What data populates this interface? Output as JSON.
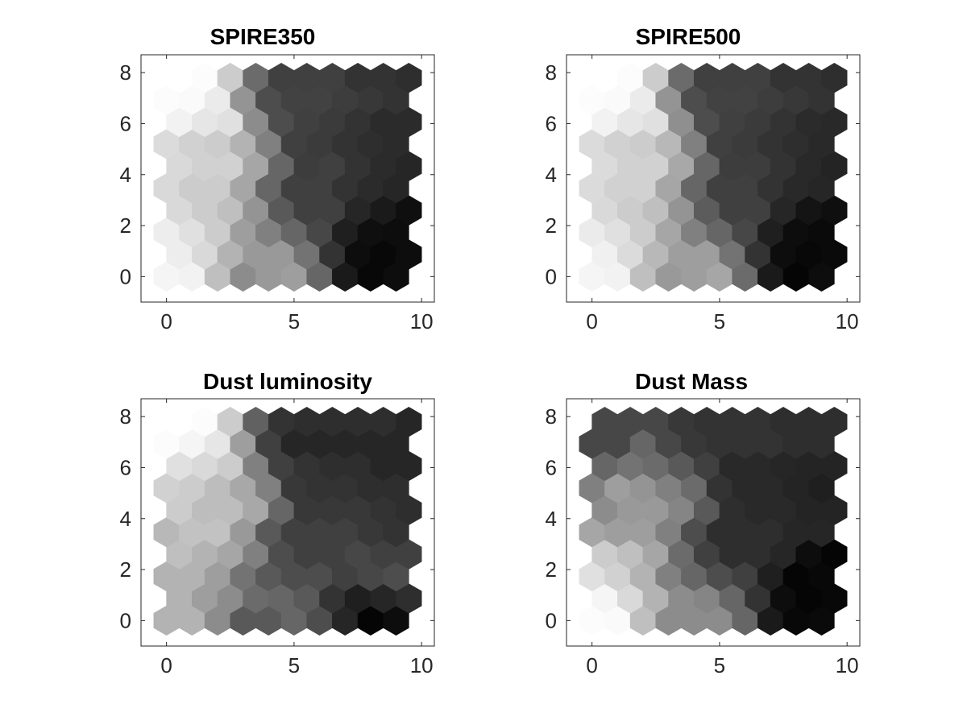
{
  "chart_data": [
    {
      "type": "heatmap",
      "title": "SPIRE350",
      "xticks": [
        "0",
        "5",
        "10"
      ],
      "yticks": [
        "0",
        "2",
        "4",
        "6",
        "8"
      ],
      "xlim": [
        -1,
        10.5
      ],
      "ylim": [
        -1,
        8.7
      ],
      "colormap": "gray (0 = black, 1 = white)",
      "grid_shape": "hexagonal 10 x 10, odd rows shifted +0.5",
      "rows": [
        [
          0.96,
          0.95,
          0.75,
          0.55,
          0.6,
          0.62,
          0.4,
          0.1,
          0.03,
          0.05
        ],
        [
          0.93,
          0.85,
          0.7,
          0.6,
          0.6,
          0.45,
          0.2,
          0.05,
          0.03,
          0.05
        ],
        [
          0.93,
          0.88,
          0.8,
          0.62,
          0.5,
          0.4,
          0.28,
          0.12,
          0.06,
          0.05
        ],
        [
          0.85,
          0.8,
          0.75,
          0.58,
          0.35,
          0.25,
          0.25,
          0.15,
          0.1,
          0.06
        ],
        [
          0.85,
          0.8,
          0.8,
          0.65,
          0.4,
          0.25,
          0.25,
          0.2,
          0.17,
          0.15
        ],
        [
          0.85,
          0.82,
          0.82,
          0.65,
          0.4,
          0.24,
          0.25,
          0.2,
          0.17,
          0.15
        ],
        [
          0.86,
          0.82,
          0.8,
          0.7,
          0.5,
          0.25,
          0.23,
          0.2,
          0.18,
          0.17
        ],
        [
          0.95,
          0.9,
          0.88,
          0.55,
          0.3,
          0.25,
          0.23,
          0.2,
          0.17,
          0.17
        ],
        [
          0.99,
          0.98,
          0.92,
          0.58,
          0.3,
          0.26,
          0.26,
          0.24,
          0.22,
          0.2
        ],
        [
          1.0,
          0.99,
          0.8,
          0.42,
          0.25,
          0.25,
          0.25,
          0.2,
          0.2,
          0.18
        ]
      ]
    },
    {
      "type": "heatmap",
      "title": "SPIRE500",
      "xticks": [
        "0",
        "5",
        "10"
      ],
      "yticks": [
        "0",
        "2",
        "4",
        "6",
        "8"
      ],
      "xlim": [
        -1,
        10.5
      ],
      "ylim": [
        -1,
        8.7
      ],
      "colormap": "gray (0 = black, 1 = white)",
      "grid_shape": "hexagonal 10 x 10, odd rows shifted +0.5",
      "rows": [
        [
          0.96,
          0.95,
          0.75,
          0.6,
          0.62,
          0.65,
          0.42,
          0.1,
          0.02,
          0.05
        ],
        [
          0.94,
          0.86,
          0.72,
          0.62,
          0.62,
          0.45,
          0.2,
          0.05,
          0.03,
          0.04
        ],
        [
          0.92,
          0.88,
          0.8,
          0.65,
          0.5,
          0.4,
          0.28,
          0.12,
          0.05,
          0.04
        ],
        [
          0.85,
          0.8,
          0.75,
          0.58,
          0.36,
          0.25,
          0.25,
          0.15,
          0.08,
          0.06
        ],
        [
          0.86,
          0.82,
          0.82,
          0.65,
          0.4,
          0.25,
          0.25,
          0.2,
          0.16,
          0.15
        ],
        [
          0.86,
          0.82,
          0.82,
          0.66,
          0.4,
          0.24,
          0.24,
          0.2,
          0.16,
          0.14
        ],
        [
          0.86,
          0.82,
          0.8,
          0.72,
          0.5,
          0.25,
          0.23,
          0.2,
          0.18,
          0.16
        ],
        [
          0.95,
          0.9,
          0.88,
          0.56,
          0.3,
          0.25,
          0.23,
          0.2,
          0.17,
          0.16
        ],
        [
          0.99,
          0.98,
          0.92,
          0.58,
          0.3,
          0.26,
          0.26,
          0.24,
          0.22,
          0.2
        ],
        [
          1.0,
          0.99,
          0.8,
          0.42,
          0.25,
          0.25,
          0.25,
          0.2,
          0.2,
          0.18
        ]
      ]
    },
    {
      "type": "heatmap",
      "title": "Dust luminosity",
      "xticks": [
        "0",
        "5",
        "10"
      ],
      "yticks": [
        "0",
        "2",
        "4",
        "6",
        "8"
      ],
      "xlim": [
        -1,
        10.5
      ],
      "ylim": [
        -1,
        8.7
      ],
      "colormap": "gray (0 = black, 1 = white)",
      "grid_shape": "hexagonal 10 x 10, odd rows shifted +0.5",
      "rows": [
        [
          0.7,
          0.7,
          0.55,
          0.35,
          0.35,
          0.4,
          0.3,
          0.15,
          0.02,
          0.05
        ],
        [
          0.7,
          0.62,
          0.55,
          0.42,
          0.4,
          0.35,
          0.2,
          0.12,
          0.15,
          0.18
        ],
        [
          0.7,
          0.7,
          0.62,
          0.45,
          0.35,
          0.3,
          0.3,
          0.25,
          0.28,
          0.3
        ],
        [
          0.75,
          0.7,
          0.65,
          0.5,
          0.3,
          0.25,
          0.25,
          0.28,
          0.25,
          0.25
        ],
        [
          0.72,
          0.76,
          0.76,
          0.6,
          0.35,
          0.25,
          0.25,
          0.25,
          0.22,
          0.2
        ],
        [
          0.8,
          0.74,
          0.74,
          0.66,
          0.4,
          0.22,
          0.22,
          0.22,
          0.2,
          0.18
        ],
        [
          0.82,
          0.8,
          0.74,
          0.66,
          0.5,
          0.22,
          0.2,
          0.2,
          0.18,
          0.18
        ],
        [
          0.88,
          0.85,
          0.8,
          0.5,
          0.25,
          0.2,
          0.18,
          0.18,
          0.15,
          0.15
        ],
        [
          0.99,
          0.96,
          0.9,
          0.62,
          0.25,
          0.15,
          0.15,
          0.15,
          0.15,
          0.15
        ],
        [
          1.0,
          0.99,
          0.8,
          0.38,
          0.2,
          0.18,
          0.18,
          0.18,
          0.18,
          0.15
        ]
      ]
    },
    {
      "type": "heatmap",
      "title": "Dust Mass",
      "xticks": [
        "0",
        "5",
        "10"
      ],
      "yticks": [
        "0",
        "2",
        "4",
        "6",
        "8"
      ],
      "xlim": [
        -1,
        10.5
      ],
      "ylim": [
        -1,
        8.7
      ],
      "colormap": "gray (0 = black, 1 = white)",
      "grid_shape": "hexagonal 10 x 10, odd rows shifted +0.5",
      "rows": [
        [
          0.99,
          0.98,
          0.75,
          0.55,
          0.55,
          0.55,
          0.4,
          0.1,
          0.03,
          0.04
        ],
        [
          0.96,
          0.85,
          0.7,
          0.55,
          0.52,
          0.4,
          0.2,
          0.05,
          0.02,
          0.03
        ],
        [
          0.88,
          0.82,
          0.7,
          0.5,
          0.4,
          0.3,
          0.25,
          0.12,
          0.02,
          0.03
        ],
        [
          0.8,
          0.75,
          0.65,
          0.42,
          0.25,
          0.18,
          0.18,
          0.15,
          0.05,
          0.02
        ],
        [
          0.65,
          0.62,
          0.62,
          0.5,
          0.3,
          0.18,
          0.18,
          0.18,
          0.15,
          0.15
        ],
        [
          0.55,
          0.6,
          0.6,
          0.52,
          0.35,
          0.18,
          0.16,
          0.16,
          0.14,
          0.14
        ],
        [
          0.5,
          0.62,
          0.58,
          0.5,
          0.42,
          0.2,
          0.16,
          0.16,
          0.14,
          0.12
        ],
        [
          0.4,
          0.45,
          0.42,
          0.35,
          0.25,
          0.16,
          0.16,
          0.15,
          0.14,
          0.14
        ],
        [
          0.28,
          0.28,
          0.4,
          0.28,
          0.22,
          0.2,
          0.2,
          0.2,
          0.18,
          0.18
        ],
        [
          0.28,
          0.28,
          0.28,
          0.22,
          0.2,
          0.2,
          0.2,
          0.18,
          0.18,
          0.18
        ]
      ]
    }
  ]
}
